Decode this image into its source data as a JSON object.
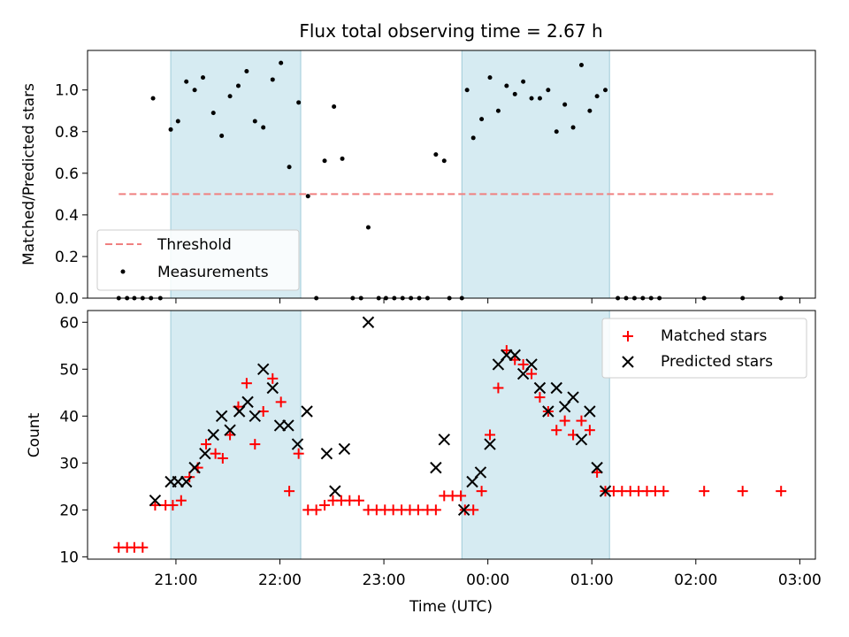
{
  "chart_data": [
    {
      "type": "scatter",
      "title": "Flux total observing time = 2.67 h",
      "ylabel": "Matched/Predicted stars",
      "xlabel": "",
      "x_unit": "hours relative to 00:00 UTC",
      "xlim": [
        -3.85,
        3.15
      ],
      "ylim": [
        0,
        1.19
      ],
      "yticks": [
        0.0,
        0.2,
        0.4,
        0.6,
        0.8,
        1.0
      ],
      "ytick_labels": [
        "0.0",
        "0.2",
        "0.4",
        "0.6",
        "0.8",
        "1.0"
      ],
      "legend_position": "lower-left",
      "shaded_intervals": [
        [
          -3.05,
          -1.8
        ],
        [
          -0.25,
          1.17
        ]
      ],
      "threshold": {
        "name": "Threshold",
        "value": 0.5,
        "x_range": [
          -3.55,
          2.75
        ],
        "color": "#f08080"
      },
      "series": [
        {
          "name": "Measurements",
          "color": "#000000",
          "points": [
            [
              -3.55,
              0.0
            ],
            [
              -3.47,
              0.0
            ],
            [
              -3.4,
              0.0
            ],
            [
              -3.32,
              0.0
            ],
            [
              -3.24,
              0.0
            ],
            [
              -3.15,
              0.0
            ],
            [
              -3.22,
              0.96
            ],
            [
              -3.05,
              0.81
            ],
            [
              -2.98,
              0.85
            ],
            [
              -2.9,
              1.04
            ],
            [
              -2.82,
              1.0
            ],
            [
              -2.74,
              1.06
            ],
            [
              -2.64,
              0.89
            ],
            [
              -2.56,
              0.78
            ],
            [
              -2.48,
              0.97
            ],
            [
              -2.4,
              1.02
            ],
            [
              -2.32,
              1.09
            ],
            [
              -2.24,
              0.85
            ],
            [
              -2.16,
              0.82
            ],
            [
              -2.07,
              1.05
            ],
            [
              -1.99,
              1.13
            ],
            [
              -1.91,
              0.63
            ],
            [
              -1.82,
              0.94
            ],
            [
              -1.73,
              0.49
            ],
            [
              -1.65,
              0.0
            ],
            [
              -1.57,
              0.66
            ],
            [
              -1.48,
              0.92
            ],
            [
              -1.4,
              0.67
            ],
            [
              -1.3,
              0.0
            ],
            [
              -1.22,
              0.0
            ],
            [
              -1.15,
              0.34
            ],
            [
              -1.05,
              0.0
            ],
            [
              -0.98,
              0.0
            ],
            [
              -0.9,
              0.0
            ],
            [
              -0.82,
              0.0
            ],
            [
              -0.74,
              0.0
            ],
            [
              -0.66,
              0.0
            ],
            [
              -0.58,
              0.0
            ],
            [
              -0.5,
              0.69
            ],
            [
              -0.42,
              0.66
            ],
            [
              -0.37,
              0.0
            ],
            [
              -0.25,
              0.0
            ],
            [
              -0.2,
              1.0
            ],
            [
              -0.14,
              0.77
            ],
            [
              -0.06,
              0.86
            ],
            [
              0.02,
              1.06
            ],
            [
              0.1,
              0.9
            ],
            [
              0.18,
              1.02
            ],
            [
              0.26,
              0.98
            ],
            [
              0.34,
              1.04
            ],
            [
              0.42,
              0.96
            ],
            [
              0.5,
              0.96
            ],
            [
              0.58,
              1.0
            ],
            [
              0.66,
              0.8
            ],
            [
              0.74,
              0.93
            ],
            [
              0.82,
              0.82
            ],
            [
              0.9,
              1.12
            ],
            [
              0.98,
              0.9
            ],
            [
              1.05,
              0.97
            ],
            [
              1.13,
              1.0
            ],
            [
              1.25,
              0.0
            ],
            [
              1.33,
              0.0
            ],
            [
              1.41,
              0.0
            ],
            [
              1.49,
              0.0
            ],
            [
              1.57,
              0.0
            ],
            [
              1.65,
              0.0
            ],
            [
              2.08,
              0.0
            ],
            [
              2.45,
              0.0
            ],
            [
              2.82,
              0.0
            ]
          ]
        }
      ]
    },
    {
      "type": "scatter",
      "title": "",
      "ylabel": "Count",
      "xlabel": "Time (UTC)",
      "x_unit": "hours relative to 00:00 UTC",
      "xlim": [
        -3.85,
        3.15
      ],
      "ylim": [
        9.5,
        62.5
      ],
      "yticks": [
        10,
        20,
        30,
        40,
        50,
        60
      ],
      "ytick_labels": [
        "10",
        "20",
        "30",
        "40",
        "50",
        "60"
      ],
      "xticks": [
        -3,
        -2,
        -1,
        0,
        1,
        2,
        3
      ],
      "xtick_labels": [
        "21:00",
        "22:00",
        "23:00",
        "00:00",
        "01:00",
        "02:00",
        "03:00"
      ],
      "legend_position": "upper-right",
      "shaded_intervals": [
        [
          -3.05,
          -1.8
        ],
        [
          -0.25,
          1.17
        ]
      ],
      "series": [
        {
          "name": "Matched stars",
          "color": "#ff0000",
          "marker": "plus",
          "points": [
            [
              -3.55,
              12
            ],
            [
              -3.47,
              12
            ],
            [
              -3.4,
              12
            ],
            [
              -3.32,
              12
            ],
            [
              -3.2,
              21
            ],
            [
              -3.1,
              21
            ],
            [
              -3.03,
              21
            ],
            [
              -2.95,
              22
            ],
            [
              -2.87,
              27
            ],
            [
              -2.79,
              29
            ],
            [
              -2.71,
              34
            ],
            [
              -2.62,
              32
            ],
            [
              -2.55,
              31
            ],
            [
              -2.48,
              36
            ],
            [
              -2.4,
              42
            ],
            [
              -2.32,
              47
            ],
            [
              -2.24,
              34
            ],
            [
              -2.16,
              41
            ],
            [
              -2.07,
              48
            ],
            [
              -1.99,
              43
            ],
            [
              -1.91,
              24
            ],
            [
              -1.82,
              32
            ],
            [
              -1.73,
              20
            ],
            [
              -1.65,
              20
            ],
            [
              -1.57,
              21
            ],
            [
              -1.49,
              22
            ],
            [
              -1.41,
              22
            ],
            [
              -1.33,
              22
            ],
            [
              -1.24,
              22
            ],
            [
              -1.15,
              20
            ],
            [
              -1.07,
              20
            ],
            [
              -0.99,
              20
            ],
            [
              -0.91,
              20
            ],
            [
              -0.83,
              20
            ],
            [
              -0.75,
              20
            ],
            [
              -0.67,
              20
            ],
            [
              -0.58,
              20
            ],
            [
              -0.5,
              20
            ],
            [
              -0.42,
              23
            ],
            [
              -0.34,
              23
            ],
            [
              -0.26,
              23
            ],
            [
              -0.22,
              20
            ],
            [
              -0.14,
              20
            ],
            [
              -0.06,
              24
            ],
            [
              0.02,
              36
            ],
            [
              0.1,
              46
            ],
            [
              0.18,
              54
            ],
            [
              0.26,
              52
            ],
            [
              0.34,
              51
            ],
            [
              0.42,
              49
            ],
            [
              0.5,
              44
            ],
            [
              0.58,
              41
            ],
            [
              0.66,
              37
            ],
            [
              0.74,
              39
            ],
            [
              0.82,
              36
            ],
            [
              0.9,
              39
            ],
            [
              0.98,
              37
            ],
            [
              1.05,
              28
            ],
            [
              1.13,
              24
            ],
            [
              1.21,
              24
            ],
            [
              1.29,
              24
            ],
            [
              1.37,
              24
            ],
            [
              1.45,
              24
            ],
            [
              1.53,
              24
            ],
            [
              1.61,
              24
            ],
            [
              1.69,
              24
            ],
            [
              2.08,
              24
            ],
            [
              2.45,
              24
            ],
            [
              2.82,
              24
            ]
          ]
        },
        {
          "name": "Predicted stars",
          "color": "#000000",
          "marker": "x",
          "points": [
            [
              -3.2,
              22
            ],
            [
              -3.05,
              26
            ],
            [
              -2.98,
              26
            ],
            [
              -2.9,
              26
            ],
            [
              -2.82,
              29
            ],
            [
              -2.72,
              32
            ],
            [
              -2.64,
              36
            ],
            [
              -2.56,
              40
            ],
            [
              -2.48,
              37
            ],
            [
              -2.39,
              41
            ],
            [
              -2.31,
              43
            ],
            [
              -2.24,
              40
            ],
            [
              -2.16,
              50
            ],
            [
              -2.07,
              46
            ],
            [
              -2.0,
              38
            ],
            [
              -1.92,
              38
            ],
            [
              -1.83,
              34
            ],
            [
              -1.74,
              41
            ],
            [
              -1.55,
              32
            ],
            [
              -1.47,
              24
            ],
            [
              -1.38,
              33
            ],
            [
              -1.15,
              60
            ],
            [
              -0.5,
              29
            ],
            [
              -0.42,
              35
            ],
            [
              -0.23,
              20
            ],
            [
              -0.15,
              26
            ],
            [
              -0.07,
              28
            ],
            [
              0.02,
              34
            ],
            [
              0.1,
              51
            ],
            [
              0.18,
              53
            ],
            [
              0.26,
              53
            ],
            [
              0.34,
              49
            ],
            [
              0.42,
              51
            ],
            [
              0.5,
              46
            ],
            [
              0.58,
              41
            ],
            [
              0.66,
              46
            ],
            [
              0.74,
              42
            ],
            [
              0.82,
              44
            ],
            [
              0.9,
              35
            ],
            [
              0.98,
              41
            ],
            [
              1.05,
              29
            ],
            [
              1.13,
              24
            ]
          ]
        }
      ]
    }
  ]
}
